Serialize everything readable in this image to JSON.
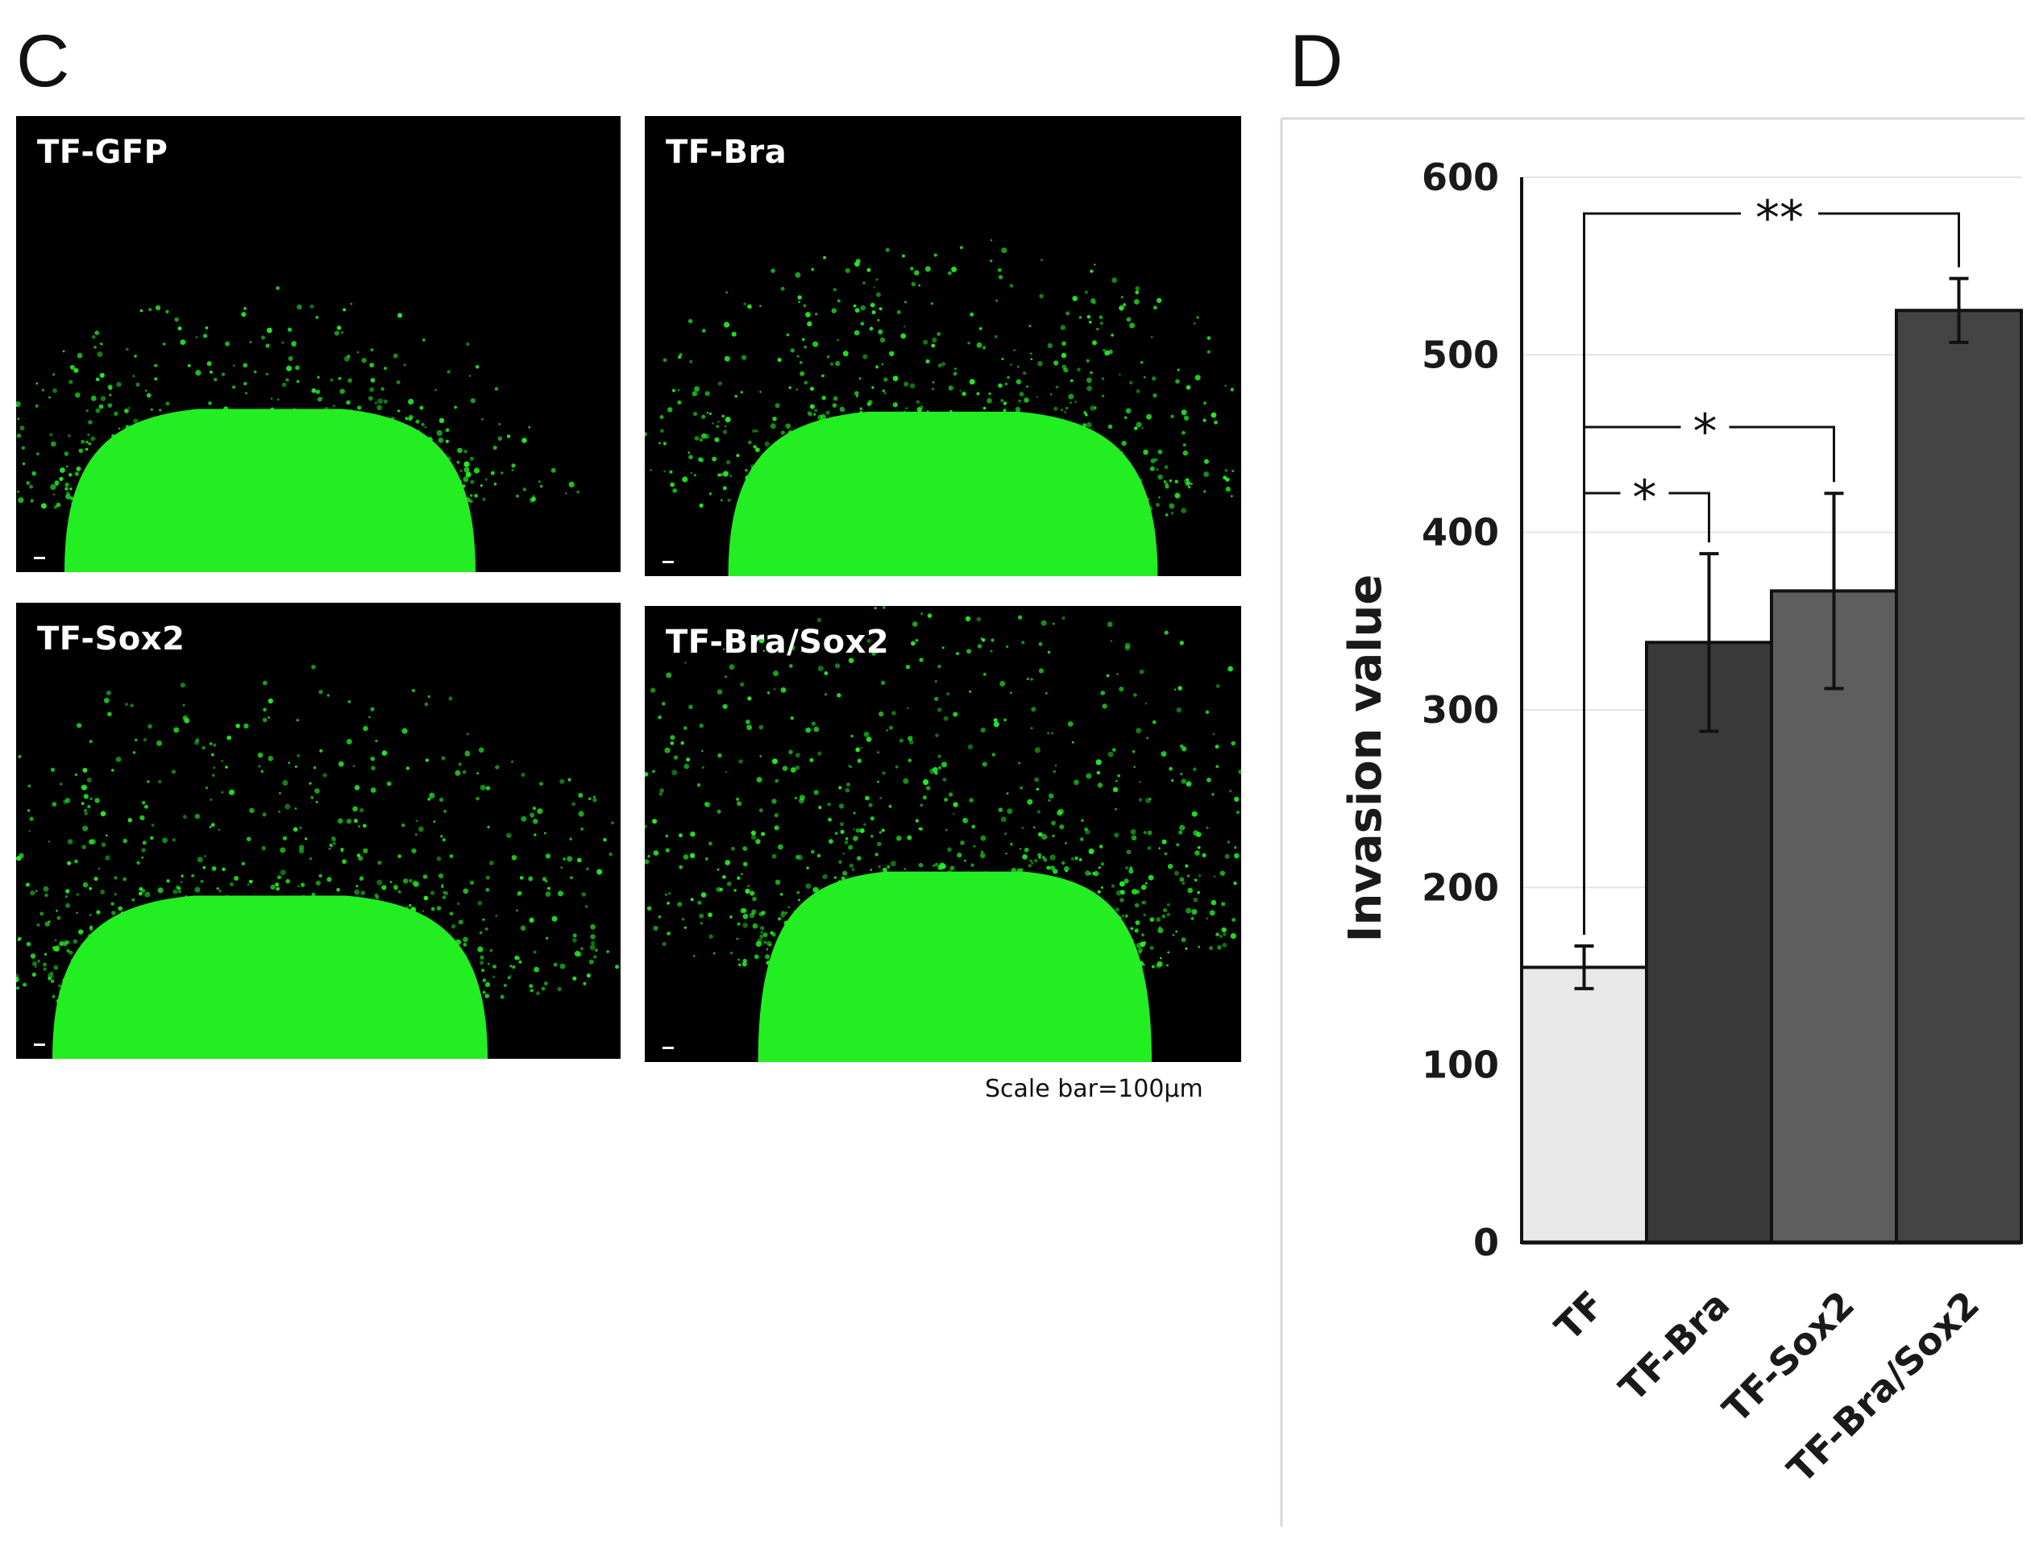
{
  "panels": {
    "c_letter": "C",
    "d_letter": "D"
  },
  "micrographs": [
    {
      "label": "TF-GFP"
    },
    {
      "label": "TF-Bra"
    },
    {
      "label": "TF-Sox2"
    },
    {
      "label": "TF-Bra/Sox2"
    }
  ],
  "scale_note": "Scale bar=100µm",
  "colors": {
    "fluorescence": "#22ee22",
    "background": "#000000"
  },
  "chart_data": {
    "type": "bar",
    "categories": [
      "TF",
      "TF-Bra",
      "TF-Sox2",
      "TF-Bra/Sox2"
    ],
    "values": [
      155,
      338,
      367,
      525
    ],
    "errors": [
      12,
      50,
      55,
      18
    ],
    "bar_colors": [
      "#e8e8e8",
      "#3a3a3a",
      "#5e5e5e",
      "#444444"
    ],
    "ylabel": "Invasion value",
    "ylim": [
      0,
      600
    ],
    "yticks": [
      0,
      100,
      200,
      300,
      400,
      500,
      600
    ],
    "grid": true,
    "significance": [
      {
        "from": "TF",
        "to": "TF-Bra/Sox2",
        "label": "**"
      },
      {
        "from": "TF",
        "to": "TF-Sox2",
        "label": "*"
      },
      {
        "from": "TF",
        "to": "TF-Bra",
        "label": "*"
      }
    ]
  }
}
